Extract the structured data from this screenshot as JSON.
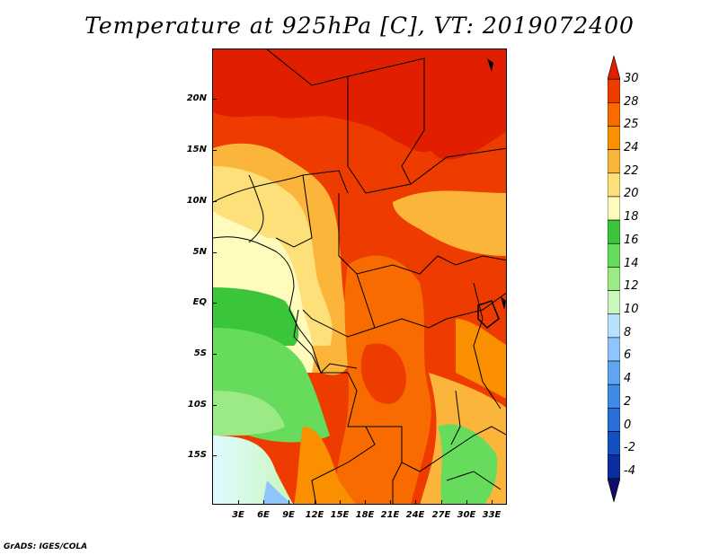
{
  "title": "Temperature at 925hPa [C], VT: 2019072400",
  "credit": "GrADS: IGES/COLA",
  "map": {
    "lat_labels": [
      "20N",
      "15N",
      "10N",
      "5N",
      "EQ",
      "5S",
      "10S",
      "15S"
    ],
    "lon_labels": [
      "3E",
      "6E",
      "9E",
      "12E",
      "15E",
      "18E",
      "21E",
      "24E",
      "27E",
      "30E",
      "33E"
    ],
    "field": "temperature",
    "units": "C"
  },
  "colorbar": {
    "labels": [
      "30",
      "28",
      "25",
      "24",
      "22",
      "20",
      "18",
      "16",
      "14",
      "12",
      "10",
      "8",
      "6",
      "4",
      "2",
      "0",
      "-2",
      "-4"
    ],
    "colors": [
      "#e11e00",
      "#ee3c00",
      "#f86b00",
      "#fa9000",
      "#fbb53b",
      "#fde07a",
      "#fefbbd",
      "#3ac53a",
      "#66db5c",
      "#9bea85",
      "#c9f7bc",
      "#b8e1fe",
      "#8fc5fd",
      "#5fa5f4",
      "#3f8ce8",
      "#2a6ed9",
      "#1550c3",
      "#0a2ea0",
      "#100c6a"
    ]
  }
}
